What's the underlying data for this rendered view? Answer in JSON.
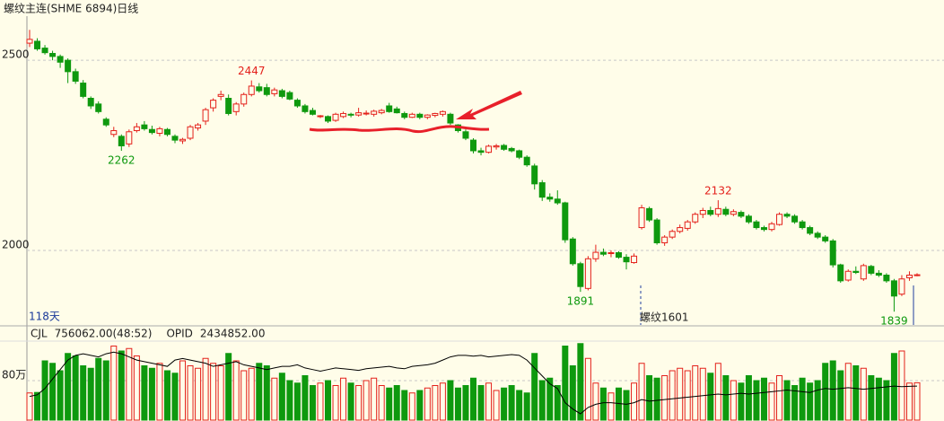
{
  "chart_data": [
    {
      "type": "candlestick",
      "title": "螺纹主连(SHME 6894)日线",
      "period_label": "118天",
      "contract_label": "螺纹1601",
      "up_color": "#e4211b",
      "down_color": "#0e990e",
      "ylim": [
        1804,
        2616
      ],
      "yticks": [
        2500,
        2000
      ],
      "grid": true,
      "high_labels": [
        2447,
        2132
      ],
      "low_labels": [
        2262,
        1891,
        1839
      ],
      "open": [
        2545,
        2550,
        2532,
        2518,
        2510,
        2500,
        2470,
        2440,
        2400,
        2385,
        2345,
        2305,
        2300,
        2280,
        2315,
        2330,
        2318,
        2308,
        2318,
        2300,
        2288,
        2295,
        2322,
        2340,
        2375,
        2405,
        2400,
        2365,
        2385,
        2410,
        2430,
        2428,
        2412,
        2420,
        2415,
        2395,
        2380,
        2368,
        2352,
        2352,
        2342,
        2352,
        2358,
        2356,
        2360,
        2358,
        2362,
        2380,
        2372,
        2360,
        2350,
        2358,
        2350,
        2355,
        2358,
        2358,
        2330,
        2312,
        2290,
        2262,
        2258,
        2272,
        2276,
        2268,
        2262,
        2245,
        2222,
        2178,
        2140,
        2135,
        2125,
        2030,
        1965,
        1900,
        1978,
        1995,
        1992,
        1994,
        1982,
        1968,
        2060,
        2110,
        2080,
        2020,
        2035,
        2050,
        2058,
        2075,
        2095,
        2105,
        2095,
        2108,
        2095,
        2100,
        2090,
        2075,
        2060,
        2055,
        2068,
        2095,
        2090,
        2075,
        2060,
        2045,
        2035,
        2025,
        1962,
        1922,
        1945,
        1925,
        1958,
        1940,
        1935,
        1920,
        1885,
        1928,
        1936
      ],
      "high": [
        2580,
        2558,
        2540,
        2525,
        2515,
        2505,
        2478,
        2448,
        2405,
        2392,
        2350,
        2325,
        2305,
        2318,
        2335,
        2340,
        2328,
        2325,
        2322,
        2305,
        2296,
        2330,
        2335,
        2375,
        2400,
        2420,
        2410,
        2390,
        2415,
        2447,
        2440,
        2438,
        2428,
        2425,
        2420,
        2400,
        2385,
        2375,
        2356,
        2355,
        2362,
        2365,
        2362,
        2375,
        2368,
        2370,
        2372,
        2388,
        2378,
        2365,
        2362,
        2362,
        2358,
        2362,
        2368,
        2362,
        2332,
        2318,
        2295,
        2270,
        2278,
        2280,
        2280,
        2272,
        2265,
        2250,
        2228,
        2185,
        2150,
        2158,
        2128,
        2035,
        1970,
        1985,
        2015,
        2005,
        2000,
        1998,
        1990,
        1992,
        2120,
        2115,
        2085,
        2040,
        2055,
        2068,
        2080,
        2100,
        2112,
        2115,
        2132,
        2115,
        2108,
        2105,
        2095,
        2080,
        2065,
        2075,
        2100,
        2100,
        2095,
        2080,
        2065,
        2050,
        2040,
        2030,
        1965,
        1950,
        1958,
        1965,
        1962,
        1948,
        1940,
        1925,
        1935,
        1945,
        1940
      ],
      "low": [
        2535,
        2525,
        2515,
        2500,
        2480,
        2440,
        2438,
        2400,
        2372,
        2360,
        2325,
        2298,
        2262,
        2272,
        2310,
        2315,
        2305,
        2300,
        2300,
        2282,
        2280,
        2290,
        2315,
        2330,
        2365,
        2395,
        2355,
        2355,
        2378,
        2405,
        2415,
        2405,
        2405,
        2400,
        2395,
        2375,
        2360,
        2355,
        2348,
        2335,
        2338,
        2348,
        2350,
        2352,
        2355,
        2352,
        2358,
        2362,
        2360,
        2345,
        2348,
        2345,
        2345,
        2350,
        2352,
        2330,
        2310,
        2290,
        2255,
        2250,
        2255,
        2265,
        2262,
        2258,
        2240,
        2220,
        2160,
        2130,
        2128,
        2120,
        2020,
        1960,
        1891,
        1895,
        1970,
        1985,
        1982,
        1978,
        1950,
        1965,
        2055,
        2075,
        2015,
        2012,
        2030,
        2045,
        2052,
        2070,
        2085,
        2090,
        2088,
        2090,
        2090,
        2085,
        2070,
        2055,
        2050,
        2050,
        2065,
        2085,
        2070,
        2055,
        2040,
        2030,
        2020,
        1955,
        1915,
        1918,
        1938,
        1920,
        1935,
        1930,
        1915,
        1839,
        1880,
        1920,
        1932
      ],
      "close": [
        2555,
        2530,
        2520,
        2510,
        2495,
        2470,
        2445,
        2405,
        2380,
        2365,
        2330,
        2315,
        2275,
        2312,
        2325,
        2320,
        2310,
        2320,
        2305,
        2290,
        2292,
        2325,
        2330,
        2370,
        2395,
        2410,
        2360,
        2385,
        2410,
        2432,
        2420,
        2410,
        2422,
        2405,
        2398,
        2380,
        2365,
        2358,
        2354,
        2340,
        2358,
        2360,
        2356,
        2362,
        2361,
        2366,
        2368,
        2365,
        2362,
        2350,
        2358,
        2350,
        2356,
        2360,
        2365,
        2335,
        2315,
        2295,
        2262,
        2258,
        2274,
        2275,
        2266,
        2262,
        2245,
        2225,
        2175,
        2140,
        2135,
        2125,
        2028,
        1965,
        1905,
        1978,
        1995,
        1990,
        1994,
        1982,
        1970,
        1985,
        2112,
        2080,
        2020,
        2035,
        2050,
        2060,
        2075,
        2095,
        2105,
        2095,
        2110,
        2095,
        2102,
        2090,
        2075,
        2060,
        2055,
        2070,
        2095,
        2090,
        2075,
        2060,
        2045,
        2035,
        2025,
        1962,
        1920,
        1945,
        1942,
        1960,
        1940,
        1935,
        1920,
        1880,
        1925,
        1935,
        1936
      ]
    },
    {
      "type": "bar",
      "ylim": [
        0,
        1600000
      ],
      "yticks": [
        {
          "value": 800000,
          "label": "80万"
        }
      ],
      "y2lim": [
        2220000,
        2720000
      ],
      "series": [
        {
          "name": "CJL",
          "last_label": "756062.00(48:52)",
          "values": [
            550000,
            560000,
            1200000,
            1150000,
            1000000,
            1350000,
            1300000,
            1100000,
            1050000,
            1250000,
            1200000,
            1500000,
            1400000,
            1450000,
            1300000,
            1100000,
            1050000,
            1150000,
            1000000,
            950000,
            1200000,
            1100000,
            1050000,
            1250000,
            1150000,
            1100000,
            1350000,
            1200000,
            1000000,
            1050000,
            1150000,
            1100000,
            850000,
            950000,
            800000,
            750000,
            900000,
            700000,
            750000,
            800000,
            700000,
            850000,
            750000,
            700000,
            800000,
            850000,
            700000,
            650000,
            700000,
            600000,
            550000,
            600000,
            650000,
            700000,
            750000,
            800000,
            650000,
            700000,
            850000,
            700000,
            750000,
            600000,
            650000,
            700000,
            600000,
            550000,
            1350000,
            800000,
            850000,
            700000,
            1500000,
            1100000,
            1550000,
            1250000,
            750000,
            650000,
            550000,
            650000,
            600000,
            750000,
            1150000,
            900000,
            850000,
            900000,
            1000000,
            1050000,
            1000000,
            1100000,
            1050000,
            950000,
            1150000,
            900000,
            800000,
            750000,
            900000,
            800000,
            850000,
            750000,
            900000,
            800000,
            700000,
            850000,
            750000,
            800000,
            1150000,
            1200000,
            1000000,
            1150000,
            1100000,
            1050000,
            900000,
            850000,
            800000,
            1350000,
            1400000,
            750000,
            756062
          ]
        },
        {
          "name": "OPID",
          "last_label": "2434852.00",
          "axis": "y2",
          "color": "#000000",
          "values": [
            2370000,
            2380000,
            2420000,
            2480000,
            2540000,
            2600000,
            2630000,
            2640000,
            2630000,
            2620000,
            2640000,
            2650000,
            2640000,
            2620000,
            2600000,
            2590000,
            2580000,
            2570000,
            2560000,
            2600000,
            2610000,
            2600000,
            2590000,
            2580000,
            2560000,
            2570000,
            2580000,
            2590000,
            2570000,
            2560000,
            2550000,
            2540000,
            2550000,
            2560000,
            2560000,
            2570000,
            2550000,
            2540000,
            2530000,
            2540000,
            2550000,
            2545000,
            2540000,
            2535000,
            2545000,
            2550000,
            2555000,
            2560000,
            2550000,
            2545000,
            2560000,
            2565000,
            2570000,
            2580000,
            2600000,
            2620000,
            2630000,
            2630000,
            2625000,
            2630000,
            2620000,
            2625000,
            2630000,
            2635000,
            2630000,
            2600000,
            2550000,
            2500000,
            2450000,
            2420000,
            2330000,
            2290000,
            2260000,
            2300000,
            2320000,
            2330000,
            2330000,
            2325000,
            2320000,
            2330000,
            2350000,
            2340000,
            2345000,
            2350000,
            2355000,
            2360000,
            2365000,
            2370000,
            2375000,
            2380000,
            2385000,
            2380000,
            2385000,
            2390000,
            2385000,
            2390000,
            2395000,
            2400000,
            2405000,
            2410000,
            2405000,
            2400000,
            2395000,
            2410000,
            2420000,
            2415000,
            2420000,
            2425000,
            2420000,
            2415000,
            2420000,
            2425000,
            2430000,
            2435000,
            2432000,
            2434000,
            2434852
          ]
        }
      ]
    }
  ]
}
